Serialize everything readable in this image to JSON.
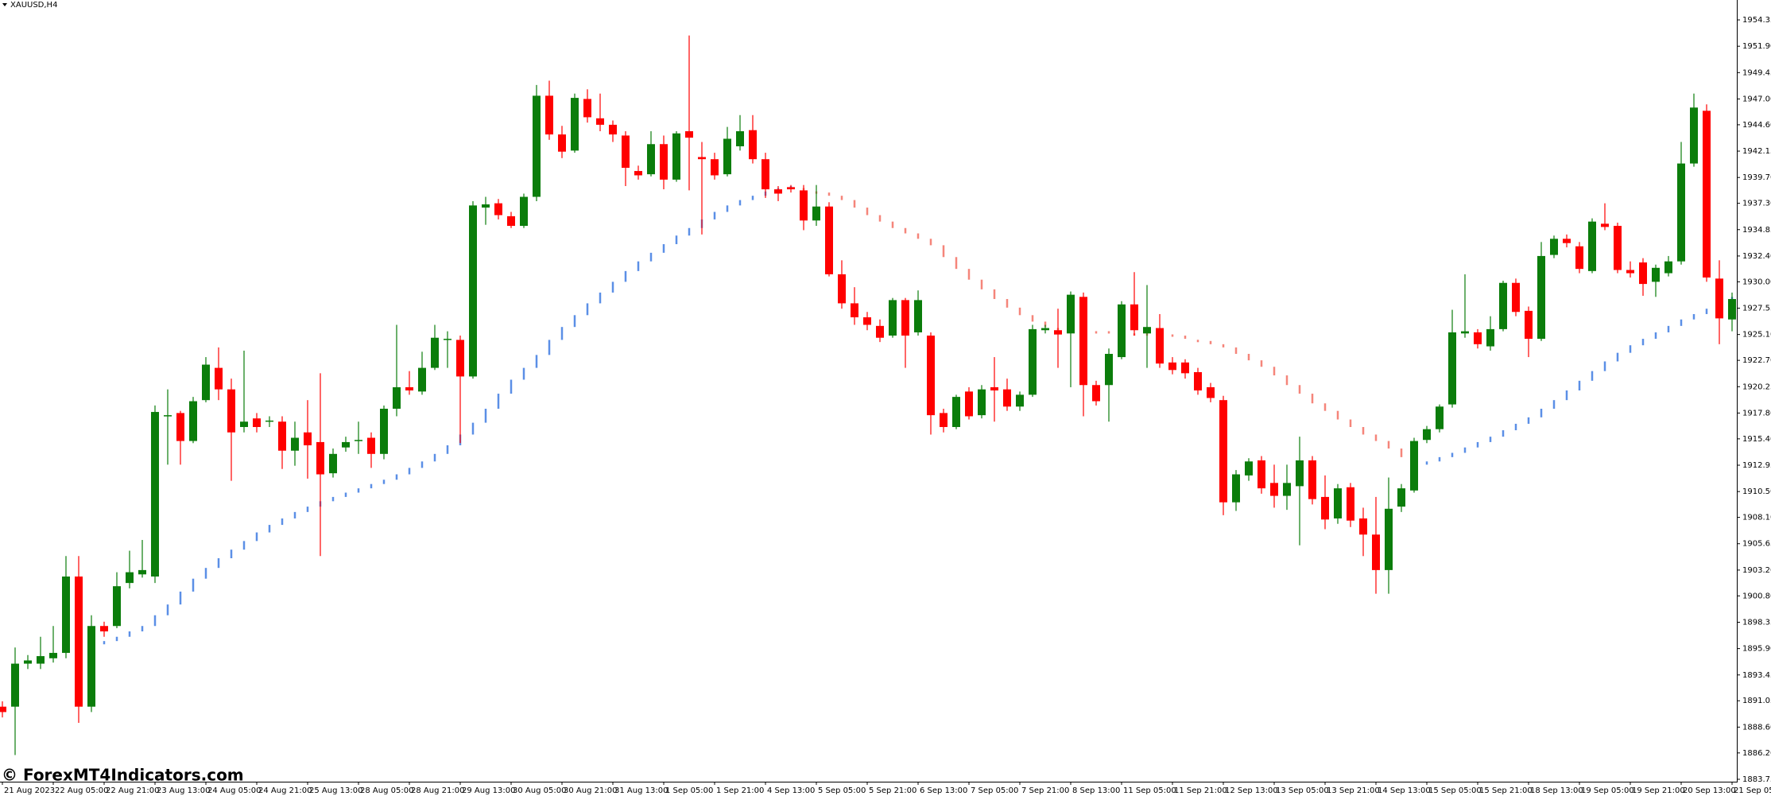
{
  "chart_data": {
    "type": "candlestick",
    "title": "XAUUSD,H4",
    "watermark": "© ForexMT4Indicators.com",
    "up_color": "#0b7d0b",
    "down_color": "#ff0000",
    "categories": [
      "21 Aug 2023",
      null,
      null,
      null,
      "22 Aug 05:00",
      null,
      null,
      null,
      "22 Aug 21:00",
      null,
      null,
      null,
      "23 Aug 13:00",
      null,
      null,
      null,
      "24 Aug 05:00",
      null,
      null,
      null,
      "24 Aug 21:00",
      null,
      null,
      null,
      "25 Aug 13:00",
      null,
      null,
      null,
      "28 Aug 05:00",
      null,
      null,
      null,
      "28 Aug 21:00",
      null,
      null,
      null,
      "29 Aug 13:00",
      null,
      null,
      null,
      "30 Aug 05:00",
      null,
      null,
      null,
      "30 Aug 21:00",
      null,
      null,
      null,
      "31 Aug 13:00",
      null,
      null,
      null,
      "1 Sep 05:00",
      null,
      null,
      null,
      "1 Sep 21:00",
      null,
      null,
      null,
      "4 Sep 13:00",
      null,
      null,
      null,
      "5 Sep 05:00",
      null,
      null,
      null,
      "5 Sep 21:00",
      null,
      null,
      null,
      "6 Sep 13:00",
      null,
      null,
      null,
      "7 Sep 05:00",
      null,
      null,
      null,
      "7 Sep 21:00",
      null,
      null,
      null,
      "8 Sep 13:00",
      null,
      null,
      null,
      "11 Sep 05:00",
      null,
      null,
      null,
      "11 Sep 21:00",
      null,
      null,
      null,
      "12 Sep 13:00",
      null,
      null,
      null,
      "13 Sep 05:00",
      null,
      null,
      null,
      "13 Sep 21:00",
      null,
      null,
      null,
      "14 Sep 13:00",
      null,
      null,
      null,
      "15 Sep 05:00",
      null,
      null,
      null,
      "15 Sep 21:00",
      null,
      null,
      null,
      "18 Sep 13:00",
      null,
      null,
      null,
      "19 Sep 05:00",
      null,
      null,
      null,
      "19 Sep 21:00",
      null,
      null,
      null,
      "20 Sep 13:00",
      null,
      null,
      null,
      "21 Sep 05:00"
    ],
    "open": [
      1890.5,
      1890.5,
      1894.5,
      1894.5,
      1895.0,
      1895.5,
      1902.6,
      1890.5,
      1898.0,
      1898.0,
      1902.0,
      1902.8,
      1902.6,
      1917.5,
      1917.8,
      1915.2,
      1919.0,
      1922.0,
      1920.0,
      1916.5,
      1917.3,
      1917.0,
      1917.0,
      1914.3,
      1916.0,
      1915.1,
      1912.2,
      1914.6,
      1915.2,
      1915.5,
      1914.0,
      1918.2,
      1920.2,
      1919.8,
      1922.0,
      1924.6,
      1924.6,
      1921.2,
      1936.9,
      1937.3,
      1936.1,
      1935.2,
      1937.9,
      1947.3,
      1943.7,
      1942.2,
      1947.0,
      1945.2,
      1944.6,
      1943.6,
      1940.3,
      1940.0,
      1942.8,
      1939.5,
      1944.0,
      1941.6,
      1941.4,
      1940.0,
      1942.6,
      1944.1,
      1941.4,
      1938.6,
      1938.8,
      1938.5,
      1935.7,
      1937.0,
      1930.7,
      1928.0,
      1926.7,
      1925.9,
      1925.0,
      1928.3,
      1925.3,
      1925.0,
      1917.8,
      1916.5,
      1919.8,
      1917.6,
      1920.2,
      1920.0,
      1918.4,
      1919.5,
      1925.5,
      1925.5,
      1925.2,
      1928.6,
      1920.4,
      1920.4,
      1923.0,
      1927.9,
      1925.2,
      1925.7,
      1922.5,
      1922.5,
      1921.6,
      1920.2,
      1919.0,
      1909.5,
      1912.0,
      1913.4,
      1911.3,
      1910.1,
      1911.0,
      1913.4,
      1910.0,
      1908.0,
      1910.9,
      1908.0,
      1906.5,
      1903.2,
      1909.1,
      1910.6,
      1915.3,
      1916.3,
      1918.6,
      1925.2,
      1925.3,
      1924.0,
      1925.6,
      1929.9,
      1927.3,
      1924.7,
      1932.5,
      1934.0,
      1933.3,
      1931.0,
      1935.4,
      1935.2,
      1931.1,
      1931.8,
      1930.0,
      1930.8,
      1931.9,
      1941.0,
      1945.9,
      1930.3,
      1926.5
    ],
    "high": [
      1891.0,
      1896.0,
      1895.3,
      1897.0,
      1898.0,
      1904.5,
      1904.5,
      1899.0,
      1898.4,
      1903.0,
      1905.0,
      1906.0,
      1918.5,
      1920.0,
      1918.0,
      1919.3,
      1923.0,
      1923.9,
      1921.0,
      1923.6,
      1917.8,
      1917.5,
      1917.5,
      1917.0,
      1919.0,
      1921.5,
      1914.5,
      1915.6,
      1917.0,
      1916.0,
      1918.5,
      1926.0,
      1921.7,
      1923.5,
      1926.0,
      1925.4,
      1925.0,
      1937.5,
      1937.9,
      1937.7,
      1936.5,
      1938.2,
      1948.3,
      1948.7,
      1944.5,
      1947.5,
      1947.9,
      1947.5,
      1945.0,
      1944.0,
      1940.8,
      1944.0,
      1943.6,
      1944.0,
      1952.9,
      1943.0,
      1942.0,
      1944.4,
      1945.5,
      1945.5,
      1942.0,
      1938.9,
      1939.0,
      1939.0,
      1939.0,
      1937.4,
      1932.0,
      1929.5,
      1927.2,
      1926.5,
      1928.5,
      1928.5,
      1929.2,
      1925.3,
      1918.2,
      1919.5,
      1920.2,
      1920.4,
      1923.0,
      1921.0,
      1919.8,
      1926.0,
      1926.0,
      1927.5,
      1929.1,
      1929.0,
      1920.8,
      1923.8,
      1928.2,
      1930.9,
      1929.7,
      1927.0,
      1923.0,
      1922.8,
      1922.0,
      1920.6,
      1919.4,
      1912.5,
      1913.6,
      1913.8,
      1913.0,
      1913.0,
      1915.6,
      1913.8,
      1912.0,
      1911.2,
      1911.3,
      1909.0,
      1910.0,
      1911.8,
      1911.2,
      1915.5,
      1916.6,
      1918.6,
      1927.4,
      1930.7,
      1925.6,
      1926.8,
      1930.1,
      1930.3,
      1927.7,
      1933.7,
      1934.3,
      1934.4,
      1933.7,
      1935.9,
      1937.3,
      1935.5,
      1931.9,
      1932.2,
      1931.6,
      1932.4,
      1943.0,
      1947.5,
      1946.5,
      1932.0,
      1929.0
    ],
    "low": [
      1889.5,
      1886.0,
      1894.0,
      1894.0,
      1894.6,
      1895.0,
      1889.0,
      1890.0,
      1897.0,
      1897.8,
      1901.5,
      1902.5,
      1902.0,
      1913.0,
      1913.0,
      1915.0,
      1918.8,
      1919.0,
      1911.5,
      1916.0,
      1916.0,
      1916.5,
      1912.6,
      1912.9,
      1911.7,
      1904.5,
      1911.8,
      1914.2,
      1914.0,
      1912.7,
      1913.5,
      1917.5,
      1919.5,
      1919.5,
      1921.8,
      1922.0,
      1915.0,
      1921.0,
      1935.3,
      1935.8,
      1935.0,
      1935.0,
      1937.5,
      1943.2,
      1941.5,
      1942.0,
      1944.8,
      1944.0,
      1943.0,
      1938.9,
      1939.5,
      1939.8,
      1938.6,
      1939.3,
      1938.5,
      1934.4,
      1939.5,
      1939.8,
      1942.2,
      1941.0,
      1937.8,
      1937.5,
      1938.3,
      1934.8,
      1935.2,
      1930.5,
      1927.5,
      1926.0,
      1925.5,
      1924.4,
      1924.8,
      1922.0,
      1925.0,
      1915.8,
      1916.0,
      1916.3,
      1917.2,
      1917.3,
      1917.0,
      1918.0,
      1918.0,
      1919.3,
      1925.2,
      1922.0,
      1920.2,
      1917.5,
      1918.5,
      1917.0,
      1922.8,
      1925.0,
      1922.0,
      1922.0,
      1921.4,
      1921.0,
      1919.5,
      1918.8,
      1908.3,
      1908.7,
      1911.5,
      1910.3,
      1909.0,
      1908.8,
      1905.5,
      1909.3,
      1907.0,
      1907.5,
      1907.2,
      1904.5,
      1901.0,
      1901.0,
      1908.6,
      1910.4,
      1915.0,
      1916.0,
      1918.3,
      1924.8,
      1923.8,
      1923.6,
      1925.4,
      1926.8,
      1923.0,
      1924.5,
      1932.2,
      1933.2,
      1930.8,
      1930.8,
      1934.8,
      1930.8,
      1930.4,
      1928.7,
      1928.6,
      1930.5,
      1931.6,
      1940.7,
      1930.0,
      1924.2,
      1925.4
    ],
    "close": [
      1890.0,
      1894.5,
      1894.8,
      1895.2,
      1895.5,
      1902.6,
      1890.5,
      1898.0,
      1897.5,
      1901.7,
      1903.0,
      1903.2,
      1917.9,
      1917.6,
      1915.2,
      1918.9,
      1922.3,
      1920.0,
      1916.0,
      1917.0,
      1916.5,
      1917.1,
      1914.3,
      1915.5,
      1914.8,
      1912.1,
      1914.0,
      1915.1,
      1915.3,
      1914.0,
      1918.2,
      1920.2,
      1919.9,
      1922.0,
      1924.8,
      1924.7,
      1921.2,
      1937.1,
      1937.2,
      1936.2,
      1935.2,
      1937.9,
      1947.3,
      1943.7,
      1942.1,
      1947.1,
      1945.3,
      1944.6,
      1943.7,
      1940.6,
      1939.9,
      1942.8,
      1939.5,
      1943.8,
      1943.4,
      1941.4,
      1939.9,
      1943.3,
      1944.0,
      1941.4,
      1938.6,
      1938.2,
      1938.6,
      1935.7,
      1937.0,
      1930.7,
      1928.0,
      1926.7,
      1926.0,
      1924.8,
      1928.3,
      1925.0,
      1928.3,
      1917.6,
      1916.5,
      1919.3,
      1917.5,
      1920.0,
      1919.9,
      1918.4,
      1919.5,
      1925.6,
      1925.7,
      1925.1,
      1928.8,
      1920.4,
      1918.9,
      1923.3,
      1927.9,
      1925.5,
      1925.8,
      1922.4,
      1921.8,
      1921.5,
      1919.9,
      1919.2,
      1909.5,
      1912.1,
      1913.3,
      1910.8,
      1910.1,
      1911.3,
      1913.4,
      1909.8,
      1907.9,
      1910.8,
      1907.8,
      1906.5,
      1903.2,
      1908.9,
      1910.8,
      1915.2,
      1916.3,
      1918.4,
      1925.3,
      1925.4,
      1924.2,
      1925.6,
      1929.9,
      1927.2,
      1924.7,
      1932.4,
      1934.0,
      1933.6,
      1931.2,
      1935.6,
      1935.1,
      1931.1,
      1930.8,
      1929.8,
      1931.3,
      1931.9,
      1941.0,
      1946.2,
      1930.4,
      1926.6,
      1928.4
    ],
    "series": [
      {
        "color": "#5b8fe6",
        "values": [
          null,
          null,
          null,
          null,
          null,
          null,
          1895.8,
          1896.3,
          1896.6,
          1897.0,
          1897.5,
          1898.0,
          1899.0,
          1900.0,
          1901.2,
          1902.4,
          1903.4,
          1904.3,
          1905.1,
          1905.9,
          1906.7,
          1907.4,
          1908.0,
          1908.6,
          1909.1,
          1909.6,
          1910.0,
          1910.4,
          1910.8,
          1911.2,
          1911.6,
          1912.1,
          1912.7,
          1913.3,
          1914.0,
          1914.8,
          1915.8,
          1916.9,
          1918.2,
          1919.6,
          1920.9,
          1922.0,
          1923.2,
          1924.6,
          1925.8,
          1926.9,
          1928.0,
          1929.0,
          1930.0,
          1931.0,
          1931.9,
          1932.7,
          1933.5,
          1934.3,
          1935.0,
          1935.8,
          1936.5,
          1937.1,
          1937.6,
          1938.0,
          1938.4,
          1938.6,
          1938.8,
          null,
          null,
          null,
          null,
          null,
          null,
          null,
          null,
          null,
          null,
          null,
          null,
          null,
          null,
          null,
          null,
          null,
          null,
          null,
          null,
          null,
          null,
          null,
          null,
          null,
          null,
          null,
          null,
          null,
          null,
          null,
          null,
          null,
          null,
          null,
          null,
          null,
          null,
          null,
          null,
          null,
          null,
          null,
          null,
          null,
          null,
          null,
          null,
          1913.0,
          1913.3,
          1913.7,
          1914.1,
          1914.6,
          1915.1,
          1915.6,
          1916.2,
          1916.8,
          1917.4,
          1918.2,
          1919.0,
          1919.9,
          1920.8,
          1921.7,
          1922.6,
          1923.4,
          1924.1,
          1924.7,
          1925.3,
          1925.9,
          1926.5,
          1927.0,
          1927.5,
          1928.0,
          1928.6
        ]
      },
      {
        "color": "#f5857a",
        "values": [
          null,
          null,
          null,
          null,
          null,
          null,
          null,
          null,
          null,
          null,
          null,
          null,
          null,
          null,
          null,
          null,
          null,
          null,
          null,
          null,
          null,
          null,
          null,
          null,
          null,
          null,
          null,
          null,
          null,
          null,
          null,
          null,
          null,
          null,
          null,
          null,
          null,
          null,
          null,
          null,
          null,
          null,
          null,
          null,
          null,
          null,
          null,
          null,
          null,
          null,
          null,
          null,
          null,
          null,
          null,
          null,
          null,
          null,
          null,
          null,
          null,
          null,
          null,
          1938.5,
          1938.3,
          1938.0,
          1937.6,
          1936.9,
          1936.2,
          1935.6,
          1935.0,
          1934.5,
          1934.0,
          1933.4,
          1932.3,
          1931.2,
          1930.2,
          1929.3,
          1928.4,
          1927.6,
          1926.9,
          1926.3,
          1925.8,
          1925.6,
          1925.5,
          1925.4,
          1925.3,
          1925.3,
          1925.2,
          1925.1,
          1925.1,
          1925.0,
          1925.0,
          1924.7,
          1924.5,
          1924.2,
          1923.9,
          1923.3,
          1922.7,
          1922.1,
          1921.3,
          1920.4,
          1919.6,
          1918.7,
          1918.0,
          1917.2,
          1916.5,
          1915.8,
          1915.2,
          1914.5,
          1913.7,
          null,
          null,
          null,
          null,
          null,
          null,
          null,
          null,
          null,
          null,
          null,
          null,
          null,
          null,
          null,
          null,
          null,
          null,
          null,
          null,
          null,
          null,
          null,
          null,
          null,
          null
        ]
      }
    ],
    "ylim": [
      1883.6,
      1956.2
    ],
    "yticks": [
      1954.35,
      {
        "value": 1951.9,
        "label": "1951.90"
      },
      1949.45,
      {
        "value": 1947.0,
        "label": "1947.00"
      },
      {
        "value": 1944.6,
        "label": "1944.60"
      },
      1942.15,
      {
        "value": 1939.7,
        "label": "1939.70"
      },
      {
        "value": 1937.3,
        "label": "1937.30"
      },
      1934.85,
      {
        "value": 1932.4,
        "label": "1932.40"
      },
      {
        "value": 1930.0,
        "label": "1930.00"
      },
      1927.55,
      {
        "value": 1925.1,
        "label": "1925.10"
      },
      {
        "value": 1922.7,
        "label": "1922.70"
      },
      1920.25,
      {
        "value": 1917.8,
        "label": "1917.80"
      },
      {
        "value": 1915.4,
        "label": "1915.40"
      },
      1912.95,
      {
        "value": 1910.5,
        "label": "1910.50"
      },
      {
        "value": 1908.1,
        "label": "1908.10"
      },
      1905.65,
      {
        "value": 1903.2,
        "label": "1903.20"
      },
      {
        "value": 1900.8,
        "label": "1900.80"
      },
      1898.35,
      {
        "value": 1895.9,
        "label": "1895.90"
      },
      1893.45,
      1891.05,
      {
        "value": 1888.6,
        "label": "1888.60"
      },
      {
        "value": 1886.2,
        "label": "1886.20"
      },
      1883.75
    ]
  }
}
